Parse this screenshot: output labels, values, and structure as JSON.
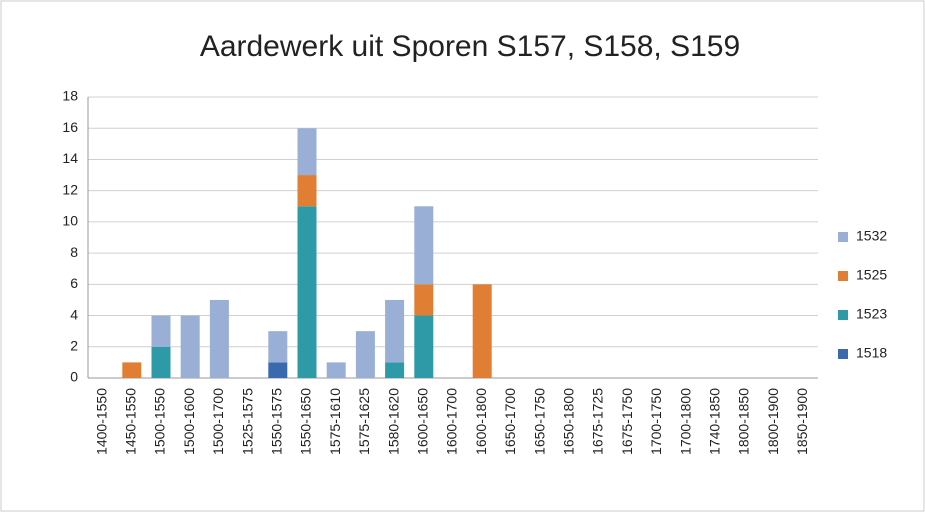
{
  "chart_data": {
    "type": "stacked_bar",
    "title": "Aardewerk uit Sporen S157, S158, S159",
    "categories": [
      "1400-1550",
      "1450-1550",
      "1500-1550",
      "1500-1600",
      "1500-1700",
      "1525-1575",
      "1550-1575",
      "1550-1650",
      "1575-1610",
      "1575-1625",
      "1580-1620",
      "1600-1650",
      "1600-1700",
      "1600-1800",
      "1650-1700",
      "1650-1750",
      "1650-1800",
      "1675-1725",
      "1675-1750",
      "1700-1750",
      "1700-1800",
      "1740-1850",
      "1800-1850",
      "1800-1900",
      "1850-1900"
    ],
    "series": [
      {
        "name": "1518",
        "color": "#3a6aad",
        "values": [
          0,
          0,
          0,
          0,
          0,
          0,
          1,
          0,
          0,
          0,
          0,
          0,
          0,
          0,
          0,
          0,
          0,
          0,
          0,
          0,
          0,
          0,
          0,
          0,
          0
        ]
      },
      {
        "name": "1523",
        "color": "#2e9aa8",
        "values": [
          0,
          0,
          2,
          0,
          0,
          0,
          0,
          11,
          0,
          0,
          1,
          4,
          0,
          0,
          0,
          0,
          0,
          0,
          0,
          0,
          0,
          0,
          0,
          0,
          0
        ]
      },
      {
        "name": "1525",
        "color": "#e07f34",
        "values": [
          0,
          1,
          0,
          0,
          0,
          0,
          0,
          2,
          0,
          0,
          0,
          2,
          0,
          6,
          0,
          0,
          0,
          0,
          0,
          0,
          0,
          0,
          0,
          0,
          0
        ]
      },
      {
        "name": "1532",
        "color": "#9aafd6",
        "values": [
          0,
          0,
          2,
          4,
          5,
          0,
          2,
          3,
          1,
          3,
          4,
          5,
          0,
          0,
          0,
          0,
          0,
          0,
          0,
          0,
          0,
          0,
          0,
          0,
          0
        ]
      }
    ],
    "ylim": [
      0,
      18
    ],
    "yticks": [
      0,
      2,
      4,
      6,
      8,
      10,
      12,
      14,
      16,
      18
    ],
    "grid": true,
    "legend": "right"
  }
}
